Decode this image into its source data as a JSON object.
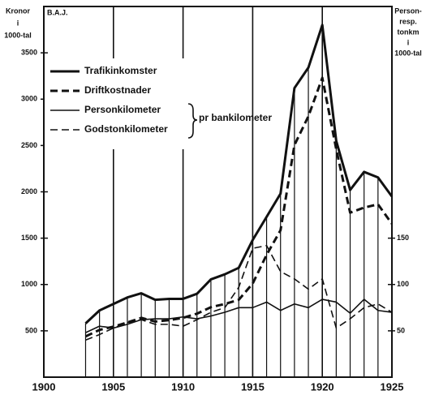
{
  "chart_data": {
    "type": "line",
    "title": "B.A.J.",
    "y_label": [
      "Kronor",
      "i",
      "1000-tal"
    ],
    "y2_label": [
      "Person-",
      "resp.",
      "tonkm",
      "i",
      "1000-tal"
    ],
    "group_label": "pr bankilometer",
    "x": [
      1903,
      1904,
      1905,
      1906,
      1907,
      1908,
      1909,
      1910,
      1911,
      1912,
      1913,
      1914,
      1915,
      1916,
      1917,
      1918,
      1919,
      1920,
      1921,
      1922,
      1923,
      1924,
      1925
    ],
    "series": [
      {
        "name": "Trafikinkomster",
        "color": "#111",
        "width": 3,
        "dash": false,
        "values": [
          580,
          720,
          790,
          860,
          905,
          835,
          845,
          845,
          900,
          1055,
          1110,
          1180,
          1480,
          1730,
          1980,
          3120,
          3340,
          3800,
          2550,
          2020,
          2215,
          2155,
          1950
        ]
      },
      {
        "name": "Driftkostnader",
        "color": "#111",
        "width": 3,
        "dash": true,
        "values": [
          440,
          510,
          545,
          590,
          640,
          600,
          615,
          640,
          685,
          755,
          790,
          835,
          1010,
          1320,
          1585,
          2505,
          2815,
          3230,
          2460,
          1775,
          1830,
          1865,
          1655
        ]
      },
      {
        "name": "Personkilometer",
        "color": "#111",
        "width": 1.6,
        "dash": false,
        "axis": "y2",
        "values": [
          48,
          55,
          53,
          57,
          62,
          63,
          63,
          65,
          63,
          66,
          70,
          75,
          75,
          81,
          72,
          79,
          75,
          84,
          81,
          69,
          84,
          72,
          70
        ]
      },
      {
        "name": "Godstonkilometer",
        "color": "#111",
        "width": 1.6,
        "dash": true,
        "axis": "y2",
        "values": [
          40,
          46,
          53,
          59,
          62,
          57,
          57,
          55,
          62,
          70,
          75,
          97,
          139,
          142,
          114,
          106,
          95,
          106,
          53,
          63,
          75,
          79,
          70
        ]
      }
    ],
    "xlim": [
      1900,
      1925
    ],
    "xticks": [
      1900,
      1905,
      1910,
      1915,
      1920,
      1925
    ],
    "ylim": [
      0,
      4000
    ],
    "yticks": [
      500,
      1000,
      1500,
      2000,
      2500,
      3000,
      3500
    ],
    "y2lim": [
      0,
      400
    ],
    "y2ticks": [
      50,
      100,
      150
    ],
    "grid": true,
    "year_hatching": true
  }
}
